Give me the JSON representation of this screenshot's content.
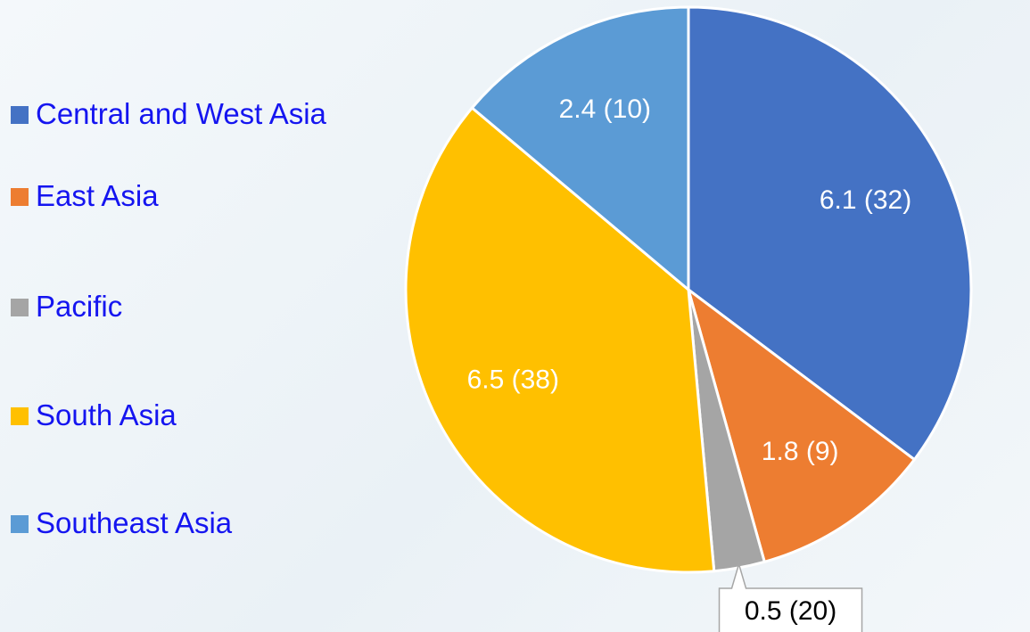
{
  "chart_data": {
    "type": "pie",
    "categories": [
      "Central and West Asia",
      "East Asia",
      "Pacific",
      "South Asia",
      "Southeast Asia"
    ],
    "values": [
      6.1,
      1.8,
      0.5,
      6.5,
      2.4
    ],
    "value_labels": [
      "6.1 (32)",
      "1.8 (9)",
      "0.5 (20)",
      "6.5  (38)",
      "2.4  (10)"
    ],
    "colors": [
      "#4472c4",
      "#ed7d31",
      "#a5a5a5",
      "#ffc000",
      "#5b9bd5"
    ],
    "legend": "left"
  }
}
